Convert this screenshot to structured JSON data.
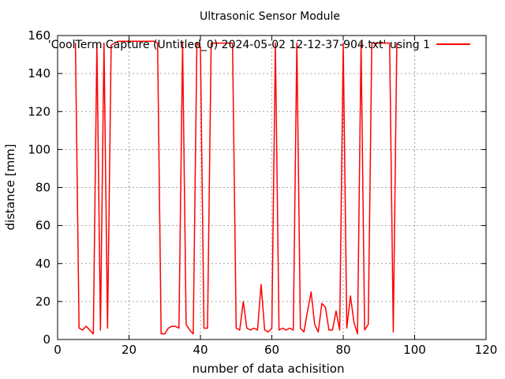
{
  "chart_data": {
    "type": "line",
    "title": "Ultrasonic Sensor Module",
    "xlabel": "number of data achisition",
    "ylabel": "distance [mm]",
    "xlim": [
      0,
      120
    ],
    "ylim": [
      0,
      160
    ],
    "xticks": [
      0,
      20,
      40,
      60,
      80,
      100,
      120
    ],
    "yticks": [
      0,
      20,
      40,
      60,
      80,
      100,
      120,
      140,
      160
    ],
    "grid": true,
    "legend_position": "top-right",
    "series": [
      {
        "name": "'CoolTerm Capture (Untitled_0) 2024-05-02 12-12-37-904.txt' using 1",
        "color": "#ff0000",
        "x": [
          5,
          6,
          7,
          8,
          9,
          10,
          11,
          12,
          13,
          14,
          15,
          16,
          17,
          18,
          19,
          20,
          21,
          22,
          23,
          24,
          25,
          26,
          27,
          28,
          29,
          30,
          31,
          32,
          33,
          34,
          35,
          36,
          37,
          38,
          39,
          40,
          41,
          42,
          43,
          44,
          45,
          46,
          47,
          48,
          49,
          50,
          51,
          52,
          53,
          54,
          55,
          56,
          57,
          58,
          59,
          60,
          61,
          62,
          63,
          64,
          65,
          66,
          67,
          68,
          69,
          70,
          71,
          72,
          73,
          74,
          75,
          76,
          77,
          78,
          79,
          80,
          81,
          82,
          83,
          84,
          85,
          86,
          87,
          88,
          89,
          90,
          91,
          92,
          93,
          94,
          95
        ],
        "y": [
          156,
          6,
          5,
          7,
          5,
          3,
          156,
          5,
          156,
          6,
          155,
          156,
          157,
          157,
          157,
          157,
          157,
          157,
          157,
          157,
          157,
          157,
          157,
          156,
          3,
          3,
          6,
          7,
          7,
          6,
          156,
          8,
          5,
          3,
          156,
          154,
          6,
          6,
          156,
          156,
          156,
          156,
          156,
          156,
          156,
          6,
          5,
          20,
          6,
          5,
          6,
          5,
          29,
          5,
          4,
          6,
          156,
          5,
          6,
          5,
          6,
          5,
          156,
          6,
          4,
          15,
          25,
          8,
          4,
          19,
          17,
          5,
          5,
          15,
          5,
          156,
          6,
          23,
          9,
          3,
          156,
          5,
          8,
          156,
          156,
          156,
          156,
          156,
          156,
          4,
          156
        ]
      }
    ]
  }
}
